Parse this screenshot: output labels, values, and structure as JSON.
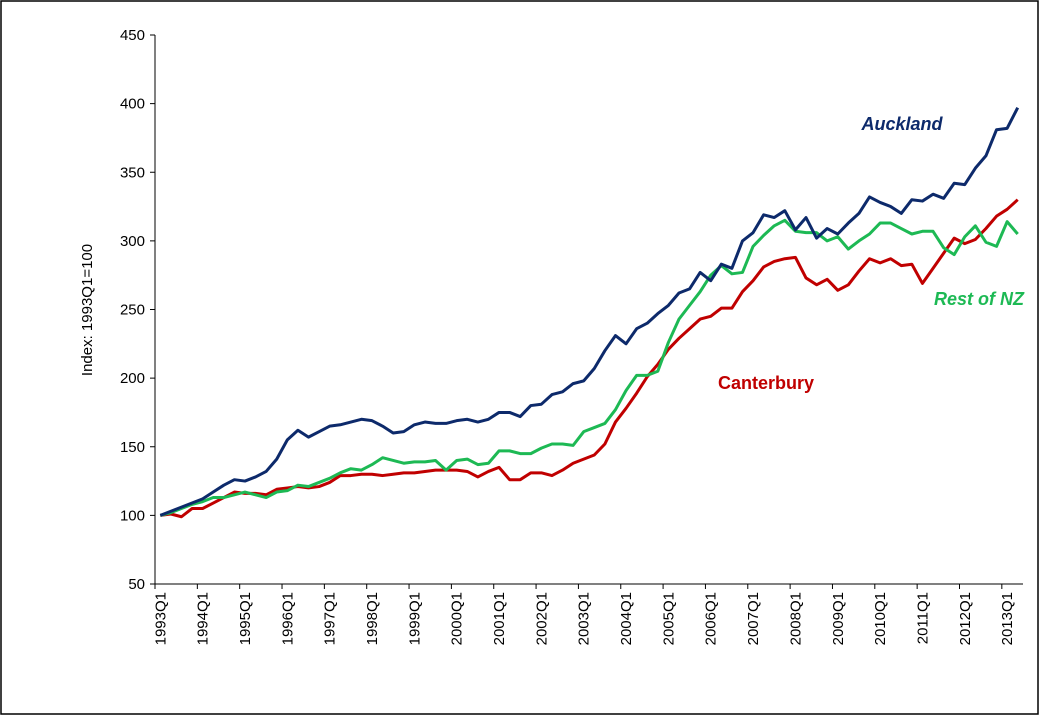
{
  "chart_data": {
    "type": "line",
    "y_label": "Index: 1993Q1=100",
    "ylim": [
      50,
      450
    ],
    "yticks": [
      50,
      100,
      150,
      200,
      250,
      300,
      350,
      400,
      450
    ],
    "categories": [
      "1993Q1",
      null,
      null,
      null,
      "1994Q1",
      null,
      null,
      null,
      "1995Q1",
      null,
      null,
      null,
      "1996Q1",
      null,
      null,
      null,
      "1997Q1",
      null,
      null,
      null,
      "1998Q1",
      null,
      null,
      null,
      "1999Q1",
      null,
      null,
      null,
      "2000Q1",
      null,
      null,
      null,
      "2001Q1",
      null,
      null,
      null,
      "2002Q1",
      null,
      null,
      null,
      "2003Q1",
      null,
      null,
      null,
      "2004Q1",
      null,
      null,
      null,
      "2005Q1",
      null,
      null,
      null,
      "2006Q1",
      null,
      null,
      null,
      "2007Q1",
      null,
      null,
      null,
      "2008Q1",
      null,
      null,
      null,
      "2009Q1",
      null,
      null,
      null,
      "2010Q1",
      null,
      null,
      null,
      "2011Q1",
      null,
      null,
      null,
      "2012Q1",
      null,
      null,
      null,
      "2013Q1",
      null
    ],
    "series": [
      {
        "name": "Auckland",
        "color": "#0d2a6b",
        "values": [
          100,
          103,
          106,
          109,
          112,
          117,
          122,
          126,
          125,
          128,
          132,
          141,
          155,
          162,
          157,
          161,
          165,
          166,
          168,
          170,
          169,
          165,
          160,
          161,
          166,
          168,
          167,
          167,
          169,
          170,
          168,
          170,
          175,
          175,
          172,
          180,
          181,
          188,
          190,
          196,
          198,
          207,
          220,
          231,
          225,
          236,
          240,
          247,
          253,
          262,
          265,
          277,
          271,
          283,
          280,
          300,
          306,
          319,
          317,
          322,
          308,
          317,
          302,
          309,
          305,
          313,
          320,
          332,
          328,
          325,
          320,
          330,
          329,
          334,
          331,
          342,
          341,
          353,
          362,
          381,
          382,
          397
        ]
      },
      {
        "name": "Canterbury",
        "color": "#c00000",
        "values": [
          100,
          101,
          99,
          105,
          105,
          109,
          113,
          117,
          116,
          116,
          115,
          119,
          120,
          121,
          120,
          121,
          124,
          129,
          129,
          130,
          130,
          129,
          130,
          131,
          131,
          132,
          133,
          133,
          133,
          132,
          128,
          132,
          135,
          126,
          126,
          131,
          131,
          129,
          133,
          138,
          141,
          144,
          152,
          168,
          178,
          189,
          201,
          210,
          221,
          229,
          236,
          243,
          245,
          251,
          251,
          263,
          271,
          281,
          285,
          287,
          288,
          273,
          268,
          272,
          264,
          268,
          278,
          287,
          284,
          287,
          282,
          283,
          269,
          280,
          291,
          302,
          298,
          301,
          309,
          318,
          323,
          330
        ]
      },
      {
        "name": "Rest of NZ",
        "color": "#1db954",
        "values": [
          100,
          102,
          105,
          108,
          110,
          113,
          113,
          115,
          117,
          115,
          113,
          117,
          118,
          122,
          121,
          124,
          127,
          131,
          134,
          133,
          137,
          142,
          140,
          138,
          139,
          139,
          140,
          133,
          140,
          141,
          137,
          138,
          147,
          147,
          145,
          145,
          149,
          152,
          152,
          151,
          161,
          164,
          167,
          177,
          191,
          202,
          202,
          205,
          226,
          243,
          253,
          263,
          275,
          282,
          276,
          277,
          296,
          304,
          311,
          315,
          307,
          306,
          306,
          300,
          303,
          294,
          300,
          305,
          313,
          313,
          309,
          305,
          307,
          307,
          295,
          290,
          303,
          311,
          299,
          296,
          314,
          305
        ]
      }
    ]
  }
}
